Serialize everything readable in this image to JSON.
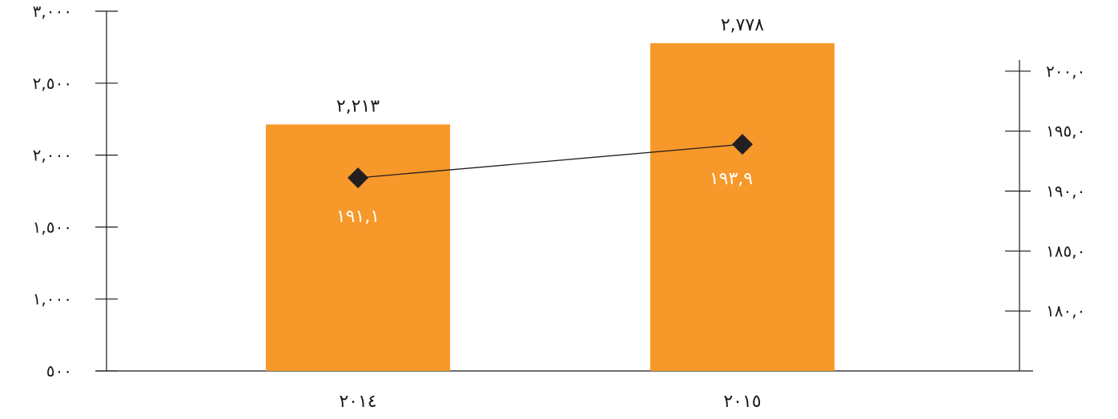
{
  "chart_data": {
    "type": "bar",
    "categories": [
      "٢٠١٤",
      "٢٠١٥"
    ],
    "bar_series": {
      "values": [
        2213,
        2778
      ],
      "data_labels": [
        "٢,٢١٣",
        "٢,٧٧٨"
      ],
      "ylim": [
        500,
        3000
      ],
      "ticks": [
        500,
        1000,
        1500,
        2000,
        2500,
        3000
      ],
      "tick_labels": [
        "٥٠٠",
        "١,٠٠٠",
        "١,٥٠٠",
        "٢,٠٠٠",
        "٢,٥٠٠",
        "٣,٠٠٠"
      ],
      "color": "#F7982A"
    },
    "line_series": {
      "values": [
        191.1,
        193.9
      ],
      "data_labels": [
        "١٩١,١",
        "١٩٣,٩"
      ],
      "ylim": [
        175,
        205
      ],
      "ticks": [
        180,
        185,
        190,
        195,
        200
      ],
      "tick_labels": [
        "١٨٠,٠",
        "١٨٥,٠",
        "١٩٠,٠",
        "١٩٥,٠",
        "٢٠٠,٠"
      ],
      "marker": "diamond",
      "color": "#231F20"
    },
    "grid": false,
    "legend": "none"
  }
}
